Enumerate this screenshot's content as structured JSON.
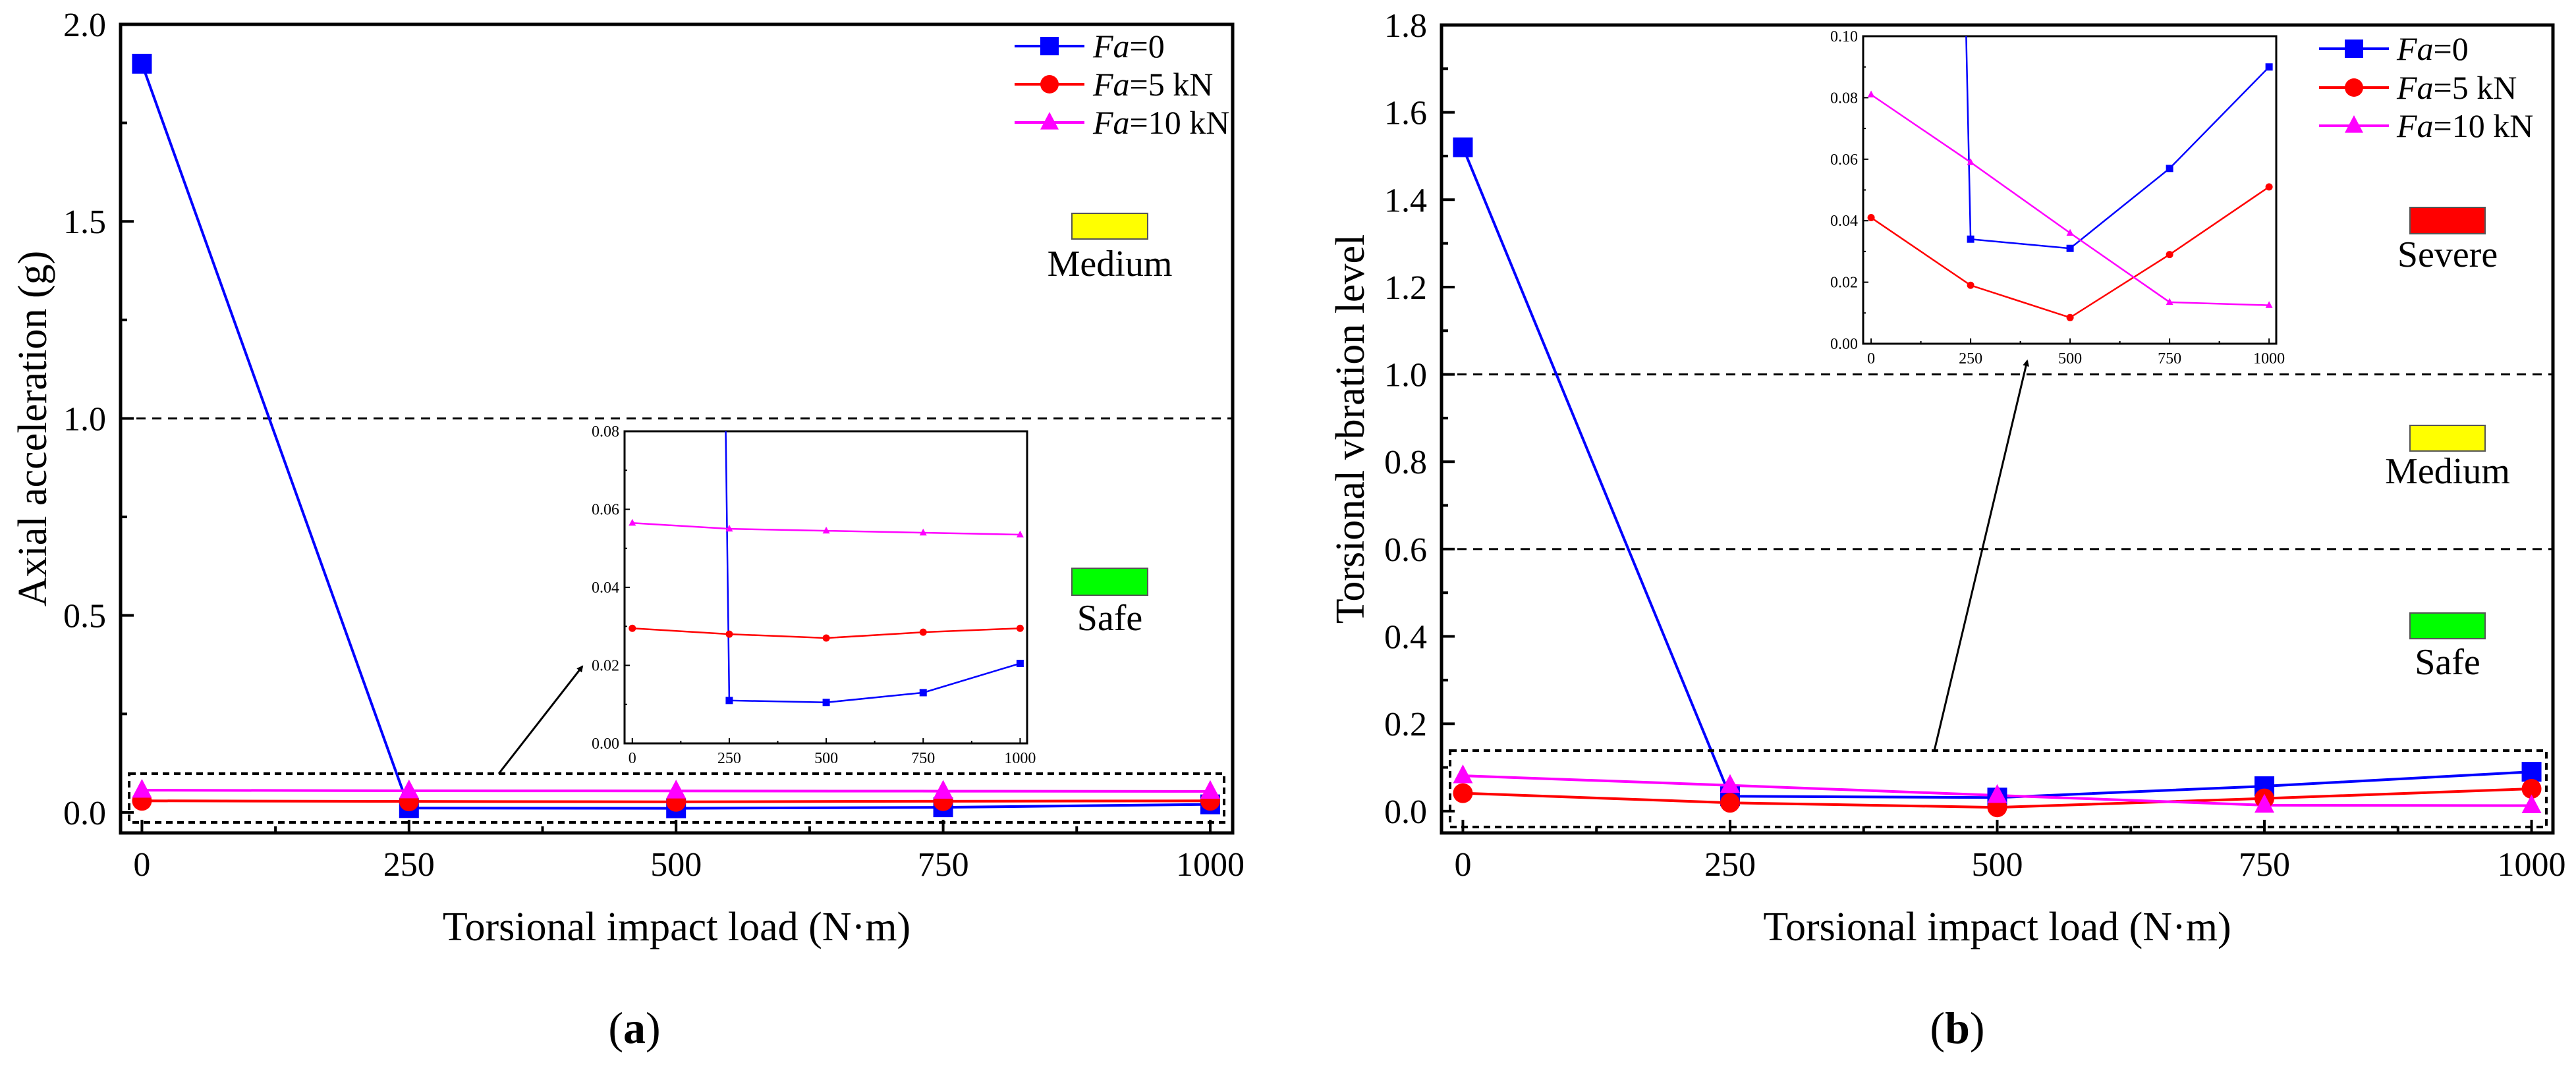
{
  "chart_data": [
    {
      "type": "line",
      "panel_label": "a",
      "xlabel": "Torsional impact load (N·m)",
      "ylabel": "Axial acceleration (g)",
      "x": [
        0,
        250,
        500,
        750,
        1000
      ],
      "xlim": [
        -20,
        1021
      ],
      "ylim": [
        -0.052,
        2.0
      ],
      "xticks": [
        0,
        250,
        500,
        750,
        1000
      ],
      "xtick_labels": [
        "0",
        "250",
        "500",
        "750",
        "1000"
      ],
      "yticks": [
        0,
        0.5,
        1.0,
        1.5,
        2.0
      ],
      "ytick_labels": [
        "0.0",
        "0.5",
        "1.0",
        "1.5",
        "2.0"
      ],
      "thresholds": [
        1.0
      ],
      "legend_position": "top-right",
      "zones": [
        {
          "label": "Medium",
          "color": "#ffff00"
        },
        {
          "label": "Safe",
          "color": "#00ff00"
        }
      ],
      "series": [
        {
          "name_italic": "Fa",
          "name_rest": "=0",
          "color": "#0000ff",
          "marker": "square",
          "values": [
            1.9,
            0.011,
            0.0105,
            0.013,
            0.0205
          ]
        },
        {
          "name_italic": "Fa",
          "name_rest": "=5 kN",
          "color": "#ff0000",
          "marker": "circle",
          "values": [
            0.0295,
            0.028,
            0.027,
            0.0285,
            0.0295
          ]
        },
        {
          "name_italic": "Fa",
          "name_rest": "=10 kN",
          "color": "#ff00ff",
          "marker": "triangle",
          "values": [
            0.0565,
            0.055,
            0.0545,
            0.054,
            0.0535
          ]
        }
      ],
      "inset": {
        "xlim": [
          -20,
          1018
        ],
        "ylim": [
          0,
          0.08
        ],
        "xticks": [
          0,
          250,
          500,
          750,
          1000
        ],
        "xtick_labels": [
          "0",
          "250",
          "500",
          "750",
          "1000"
        ],
        "yticks": [
          0,
          0.02,
          0.04,
          0.06,
          0.08
        ],
        "ytick_labels": [
          "0.00",
          "0.02",
          "0.04",
          "0.06",
          "0.08"
        ]
      }
    },
    {
      "type": "line",
      "panel_label": "b",
      "xlabel": "Torsional impact load (N·m)",
      "ylabel": "Torsional vbration level",
      "x": [
        0,
        250,
        500,
        750,
        1000
      ],
      "xlim": [
        -20,
        1020
      ],
      "ylim": [
        -0.05,
        1.8
      ],
      "xticks": [
        0,
        250,
        500,
        750,
        1000
      ],
      "xtick_labels": [
        "0",
        "250",
        "500",
        "750",
        "1000"
      ],
      "yticks": [
        0,
        0.2,
        0.4,
        0.6,
        0.8,
        1.0,
        1.2,
        1.4,
        1.6,
        1.8
      ],
      "ytick_labels": [
        "0.0",
        "0.2",
        "0.4",
        "0.6",
        "0.8",
        "1.0",
        "1.2",
        "1.4",
        "1.6",
        "1.8"
      ],
      "thresholds": [
        1.0,
        0.6
      ],
      "legend_position": "top-right",
      "zones": [
        {
          "label": "Severe",
          "color": "#ff0000"
        },
        {
          "label": "Medium",
          "color": "#ffff00"
        },
        {
          "label": "Safe",
          "color": "#00ff00"
        }
      ],
      "series": [
        {
          "name_italic": "Fa",
          "name_rest": "=0",
          "color": "#0000ff",
          "marker": "square",
          "values": [
            1.52,
            0.034,
            0.031,
            0.057,
            0.09
          ]
        },
        {
          "name_italic": "Fa",
          "name_rest": "=5 kN",
          "color": "#ff0000",
          "marker": "circle",
          "values": [
            0.041,
            0.019,
            0.0085,
            0.029,
            0.051
          ]
        },
        {
          "name_italic": "Fa",
          "name_rest": "=10 kN",
          "color": "#ff00ff",
          "marker": "triangle",
          "values": [
            0.081,
            0.059,
            0.036,
            0.0135,
            0.0125
          ]
        }
      ],
      "inset": {
        "xlim": [
          -20,
          1018
        ],
        "ylim": [
          0,
          0.1
        ],
        "xticks": [
          0,
          250,
          500,
          750,
          1000
        ],
        "xtick_labels": [
          "0",
          "250",
          "500",
          "750",
          "1000"
        ],
        "yticks": [
          0,
          0.02,
          0.04,
          0.06,
          0.08,
          0.1
        ],
        "ytick_labels": [
          "0.00",
          "0.02",
          "0.04",
          "0.06",
          "0.08",
          "0.10"
        ]
      }
    }
  ]
}
